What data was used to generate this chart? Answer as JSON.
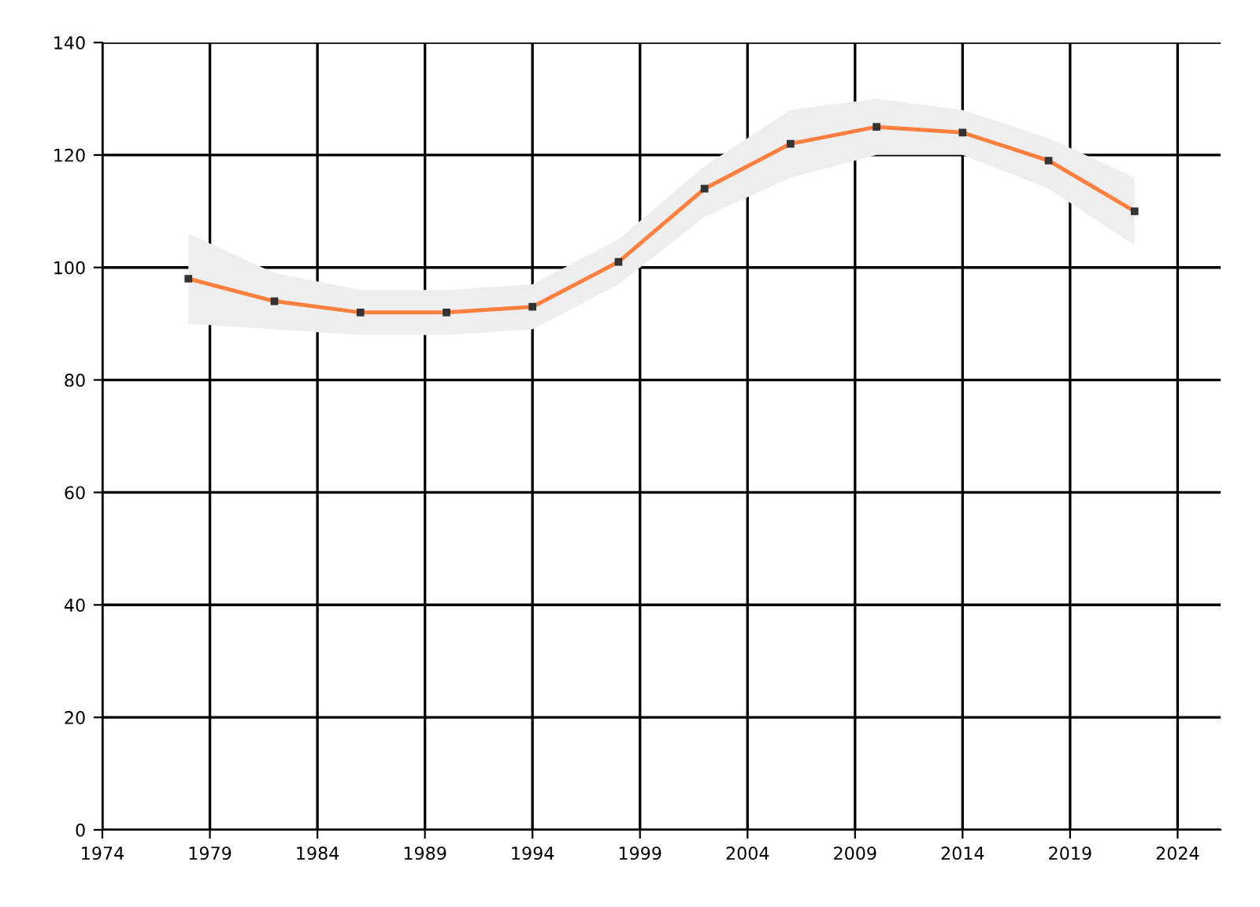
{
  "chart_data": {
    "type": "line",
    "x": [
      1978,
      1982,
      1986,
      1990,
      1994,
      1998,
      2002,
      2006,
      2010,
      2014,
      2018,
      2022
    ],
    "series": [
      {
        "color": "#ff7f3f",
        "values": [
          98,
          94,
          92,
          92,
          93,
          101,
          114,
          122,
          125,
          124,
          119,
          110
        ],
        "lower": [
          90,
          89,
          88,
          88,
          89,
          97,
          109,
          116,
          120,
          120,
          114,
          104
        ],
        "upper": [
          106,
          99,
          96,
          96,
          97,
          105,
          118,
          128,
          130,
          128,
          123,
          116
        ]
      }
    ],
    "marker": "square",
    "xlim": [
      1974,
      2026
    ],
    "xticks": [
      1974,
      1979,
      1984,
      1989,
      1994,
      1999,
      2004,
      2009,
      2014,
      2019,
      2024
    ],
    "ylim": [
      0,
      140
    ],
    "yticks": [
      0,
      20,
      40,
      60,
      80,
      100,
      120,
      140
    ],
    "grid": true,
    "legend": false
  }
}
